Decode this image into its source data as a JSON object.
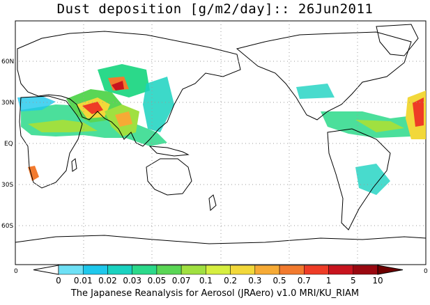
{
  "title": "Dust deposition [g/m2/day]:: 26Jun2011",
  "footer": "The Japanese Reanalysis for Aerosol (JRAero) v1.0 MRI/KU_RIAM",
  "latitude_labels": [
    {
      "label": "60N",
      "lat": 60
    },
    {
      "label": "30N",
      "lat": 30
    },
    {
      "label": "EQ",
      "lat": 0
    },
    {
      "label": "30S",
      "lat": -30
    },
    {
      "label": "60S",
      "lat": -60
    }
  ],
  "axis_edge_labels": {
    "left": "0",
    "right": "0"
  },
  "colorbar": {
    "levels": [
      "0",
      "0.01",
      "0.02",
      "0.03",
      "0.05",
      "0.07",
      "0.1",
      "0.2",
      "0.3",
      "0.5",
      "0.7",
      "1",
      "5",
      "10"
    ],
    "colors": [
      "#ffffff",
      "#6ee0f5",
      "#1ec8ec",
      "#1ad2c0",
      "#2bd98a",
      "#5ad655",
      "#a0e040",
      "#d6ee40",
      "#f2d83a",
      "#f6aa35",
      "#f27a2e",
      "#ee3c26",
      "#c8141e",
      "#9a0810",
      "#6e0000"
    ]
  },
  "colors": {
    "land_outline": "#000000",
    "grid": "#999999"
  }
}
